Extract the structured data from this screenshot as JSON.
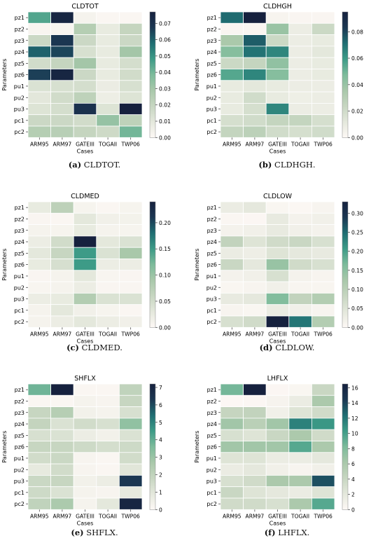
{
  "colors": {
    "cmap": [
      "#fdf8f5",
      "#e4e8dc",
      "#c7d6c1",
      "#a9c8aa",
      "#7dbb9b",
      "#3d9b87",
      "#1f6e72",
      "#1b3752",
      "#16213e"
    ],
    "grid": "#ffffff"
  },
  "charts": [
    {
      "caption_tag": "(a)",
      "caption_text": "CLDTOT.",
      "chart_data": {
        "type": "heatmap",
        "title": "CLDTOT",
        "xlabel": "Cases",
        "ylabel": "Parameters",
        "x": [
          "ARM95",
          "ARM97",
          "GATEIII",
          "TOGAII",
          "TWP06"
        ],
        "y": [
          "pz1",
          "pz2",
          "pz3",
          "pz4",
          "pz5",
          "pz6",
          "pu1",
          "pu2",
          "pu3",
          "pc1",
          "pc2"
        ],
        "vmin": 0,
        "vmax": 0.077,
        "colorbar_ticks": [
          "0.00",
          "0.01",
          "0.02",
          "0.03",
          "0.04",
          "0.05",
          "0.06",
          "0.07"
        ],
        "values": [
          [
            0.045,
            0.075,
            0.003,
            0.001,
            0.001
          ],
          [
            0.002,
            0.002,
            0.025,
            0.008,
            0.02
          ],
          [
            0.018,
            0.068,
            0.018,
            0.008,
            0.018
          ],
          [
            0.06,
            0.065,
            0.014,
            0.008,
            0.03
          ],
          [
            0.016,
            0.02,
            0.03,
            0.008,
            0.015
          ],
          [
            0.066,
            0.075,
            0.018,
            0.008,
            0.016
          ],
          [
            0.013,
            0.014,
            0.015,
            0.007,
            0.014
          ],
          [
            0.01,
            0.016,
            0.022,
            0.006,
            0.012
          ],
          [
            0.012,
            0.015,
            0.07,
            0.012,
            0.077
          ],
          [
            0.018,
            0.018,
            0.016,
            0.033,
            0.022
          ],
          [
            0.025,
            0.024,
            0.02,
            0.017,
            0.04
          ]
        ]
      }
    },
    {
      "caption_tag": "(b)",
      "caption_text": "CLDHGH.",
      "chart_data": {
        "type": "heatmap",
        "title": "CLDHGH",
        "xlabel": "Cases",
        "ylabel": "Parameters",
        "x": [
          "ARM95",
          "ARM97",
          "GATEIII",
          "TOGAII",
          "TWP06"
        ],
        "y": [
          "pz1",
          "pz2",
          "pz3",
          "pz4",
          "pz5",
          "pz6",
          "pu1",
          "pu2",
          "pu3",
          "pc1",
          "pc2"
        ],
        "vmin": 0,
        "vmax": 0.095,
        "colorbar_ticks": [
          "0.00",
          "0.02",
          "0.04",
          "0.06",
          "0.08"
        ],
        "values": [
          [
            0.072,
            0.095,
            0.003,
            0.002,
            0.002
          ],
          [
            0.002,
            0.002,
            0.04,
            0.008,
            0.022
          ],
          [
            0.035,
            0.075,
            0.022,
            0.008,
            0.01
          ],
          [
            0.045,
            0.07,
            0.065,
            0.008,
            0.012
          ],
          [
            0.022,
            0.025,
            0.042,
            0.008,
            0.01
          ],
          [
            0.055,
            0.065,
            0.045,
            0.008,
            0.01
          ],
          [
            0.01,
            0.012,
            0.01,
            0.008,
            0.008
          ],
          [
            0.01,
            0.02,
            0.01,
            0.007,
            0.008
          ],
          [
            0.01,
            0.018,
            0.065,
            0.008,
            0.008
          ],
          [
            0.018,
            0.02,
            0.025,
            0.025,
            0.018
          ],
          [
            0.025,
            0.028,
            0.02,
            0.018,
            0.02
          ]
        ]
      }
    },
    {
      "caption_tag": "(c)",
      "caption_text": "CLDMED.",
      "chart_data": {
        "type": "heatmap",
        "title": "CLDMED",
        "xlabel": "Cases",
        "ylabel": "Parameters",
        "x": [
          "ARM95",
          "ARM97",
          "GATEIII",
          "TOGAII",
          "TWP06"
        ],
        "y": [
          "pz1",
          "pz2",
          "pz3",
          "pz4",
          "pz5",
          "pz6",
          "pu1",
          "pu2",
          "pu3",
          "pc1",
          "pc2"
        ],
        "vmin": 0,
        "vmax": 0.24,
        "colorbar_ticks": [
          "0.00",
          "0.05",
          "0.10",
          "0.15",
          "0.20"
        ],
        "values": [
          [
            0.025,
            0.07,
            0.008,
            0.004,
            0.008
          ],
          [
            0.005,
            0.004,
            0.03,
            0.015,
            0.012
          ],
          [
            0.01,
            0.008,
            0.025,
            0.01,
            0.008
          ],
          [
            0.02,
            0.05,
            0.24,
            0.03,
            0.04
          ],
          [
            0.03,
            0.06,
            0.15,
            0.04,
            0.09
          ],
          [
            0.025,
            0.045,
            0.15,
            0.02,
            0.02
          ],
          [
            0.005,
            0.01,
            0.03,
            0.006,
            0.005
          ],
          [
            0.006,
            0.01,
            0.02,
            0.005,
            0.005
          ],
          [
            0.02,
            0.025,
            0.08,
            0.04,
            0.04
          ],
          [
            0.01,
            0.03,
            0.015,
            0.008,
            0.004
          ],
          [
            0.01,
            0.02,
            0.03,
            0.02,
            0.015
          ]
        ]
      }
    },
    {
      "caption_tag": "(d)",
      "caption_text": "CLDLOW.",
      "chart_data": {
        "type": "heatmap",
        "title": "CLDLOW",
        "xlabel": "Cases",
        "ylabel": "Parameters",
        "x": [
          "ARM95",
          "ARM97",
          "GATEIII",
          "TOGAII",
          "TWP06"
        ],
        "y": [
          "pz1",
          "pz2",
          "pz3",
          "pz4",
          "pz5",
          "pz6",
          "pu1",
          "pu2",
          "pu3",
          "pc1",
          "pc2"
        ],
        "vmin": 0,
        "vmax": 0.33,
        "colorbar_ticks": [
          "0.00",
          "0.05",
          "0.10",
          "0.15",
          "0.20",
          "0.25",
          "0.30"
        ],
        "values": [
          [
            0.03,
            0.04,
            0.006,
            0.003,
            0.01
          ],
          [
            0.005,
            0.004,
            0.035,
            0.015,
            0.02
          ],
          [
            0.015,
            0.02,
            0.035,
            0.02,
            0.015
          ],
          [
            0.09,
            0.05,
            0.07,
            0.08,
            0.06
          ],
          [
            0.03,
            0.025,
            0.05,
            0.04,
            0.035
          ],
          [
            0.08,
            0.04,
            0.14,
            0.07,
            0.06
          ],
          [
            0.015,
            0.02,
            0.06,
            0.015,
            0.01
          ],
          [
            0.006,
            0.01,
            0.02,
            0.008,
            0.008
          ],
          [
            0.035,
            0.04,
            0.16,
            0.09,
            0.11
          ],
          [
            0.01,
            0.006,
            0.03,
            0.02,
            0.01
          ],
          [
            0.06,
            0.07,
            0.33,
            0.24,
            0.11
          ]
        ]
      }
    },
    {
      "caption_tag": "(e)",
      "caption_text": "SHFLX.",
      "chart_data": {
        "type": "heatmap",
        "title": "SHFLX",
        "xlabel": "Cases",
        "ylabel": "Parameters",
        "x": [
          "ARM95",
          "ARM97",
          "GATEIII",
          "TOGAII",
          "TWP06"
        ],
        "y": [
          "pz1",
          "pz2",
          "pz3",
          "pz4",
          "pz5",
          "pz6",
          "pu1",
          "pu2",
          "pu3",
          "pc1",
          "pc2"
        ],
        "vmin": 0,
        "vmax": 7.2,
        "colorbar_ticks": [
          "0",
          "1",
          "2",
          "3",
          "4",
          "5",
          "6",
          "7"
        ],
        "values": [
          [
            3.8,
            7.2,
            0.1,
            0.1,
            2.0
          ],
          [
            0.1,
            0.1,
            0.3,
            0.2,
            1.8
          ],
          [
            1.8,
            2.3,
            0.4,
            0.3,
            1.3
          ],
          [
            1.9,
            1.2,
            1.5,
            1.3,
            3.2
          ],
          [
            1.3,
            1.2,
            0.6,
            0.4,
            1.2
          ],
          [
            1.8,
            1.8,
            1.6,
            1.4,
            1.6
          ],
          [
            1.5,
            1.7,
            0.2,
            0.1,
            1.5
          ],
          [
            0.8,
            1.5,
            0.2,
            0.1,
            1.0
          ],
          [
            1.7,
            1.8,
            0.4,
            0.6,
            6.3
          ],
          [
            1.6,
            1.2,
            0.3,
            0.2,
            0.8
          ],
          [
            2.0,
            2.6,
            0.3,
            0.9,
            7.0
          ]
        ]
      }
    },
    {
      "caption_tag": "(f)",
      "caption_text": "LHFLX.",
      "chart_data": {
        "type": "heatmap",
        "title": "LHFLX",
        "xlabel": "Cases",
        "ylabel": "Parameters",
        "x": [
          "ARM95",
          "ARM97",
          "GATEIII",
          "TOGAII",
          "TWP06"
        ],
        "y": [
          "pz1",
          "pz2",
          "pz3",
          "pz4",
          "pz5",
          "pz6",
          "pu1",
          "pu2",
          "pu3",
          "pc1",
          "pc2"
        ],
        "vmin": 0,
        "vmax": 16.5,
        "colorbar_ticks": [
          "0",
          "2",
          "4",
          "6",
          "8",
          "10",
          "12",
          "14",
          "16"
        ],
        "values": [
          [
            8.5,
            16.5,
            0.2,
            0.3,
            4.0
          ],
          [
            0.1,
            0.2,
            0.6,
            1.5,
            6.0
          ],
          [
            4.2,
            4.5,
            1.0,
            2.5,
            3.5
          ],
          [
            6.5,
            5.0,
            6.5,
            11.5,
            10.5
          ],
          [
            3.0,
            2.5,
            4.0,
            6.0,
            3.5
          ],
          [
            6.5,
            6.5,
            6.5,
            9.5,
            6.0
          ],
          [
            2.5,
            2.5,
            1.5,
            1.5,
            2.0
          ],
          [
            1.5,
            2.0,
            1.0,
            0.5,
            1.0
          ],
          [
            3.0,
            3.5,
            6.0,
            6.0,
            13.5
          ],
          [
            4.0,
            2.5,
            2.0,
            1.5,
            2.5
          ],
          [
            3.5,
            3.5,
            3.0,
            6.0,
            9.5
          ]
        ]
      }
    }
  ]
}
